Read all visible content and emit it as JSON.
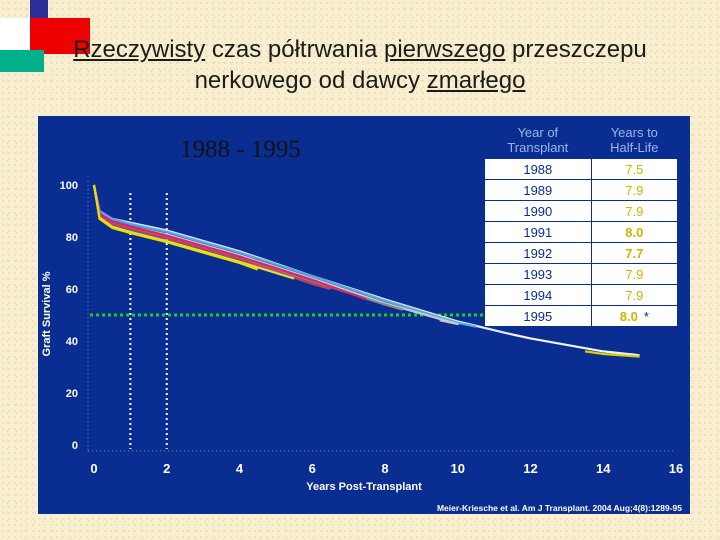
{
  "slide": {
    "title_parts": [
      {
        "text": "Rzeczywisty",
        "underline": true
      },
      {
        "text": " czas półtrwania ",
        "underline": false
      },
      {
        "text": "pierwszego",
        "underline": true
      },
      {
        "text": " przeszczepu nerkowego od dawcy ",
        "underline": false
      },
      {
        "text": "zmarłego",
        "underline": true
      }
    ]
  },
  "chart_data": {
    "type": "line",
    "year_range_label": "1988 - 1995",
    "xlabel": "Years Post-Transplant",
    "ylabel": "Graft Survival %",
    "xlim": [
      0,
      16
    ],
    "ylim": [
      0,
      100
    ],
    "x_ticks": [
      "0",
      "2",
      "4",
      "6",
      "8",
      "10",
      "12",
      "14",
      "16"
    ],
    "y_ticks": [
      "0",
      "20",
      "40",
      "60",
      "80",
      "100"
    ],
    "reference_line": {
      "y": 50,
      "color": "#22cc22"
    },
    "vertical_markers": [
      {
        "x": 1
      },
      {
        "x": 2
      }
    ],
    "citation": "Meier-Kriesche et al. Am J Transplant. 2004 Aug;4(8):1289-95",
    "series": [
      {
        "color": "#e8e8ff",
        "values": [
          [
            0,
            100
          ],
          [
            0.15,
            90
          ],
          [
            0.5,
            87
          ],
          [
            1,
            85.5
          ],
          [
            2,
            82.5
          ],
          [
            4,
            74.5
          ],
          [
            6,
            65
          ],
          [
            8,
            56
          ],
          [
            10,
            47.5
          ],
          [
            11.5,
            42.5
          ]
        ]
      },
      {
        "color": "#4fa8e8",
        "values": [
          [
            0,
            100
          ],
          [
            0.15,
            90
          ],
          [
            0.5,
            87
          ],
          [
            1,
            85
          ],
          [
            2,
            82
          ],
          [
            4,
            74
          ],
          [
            6,
            65
          ],
          [
            8,
            55.5
          ],
          [
            10,
            47
          ],
          [
            10.5,
            45.5
          ]
        ]
      },
      {
        "color": "#c8c8c8",
        "values": [
          [
            0,
            100
          ],
          [
            0.15,
            89
          ],
          [
            0.5,
            86
          ],
          [
            1,
            84
          ],
          [
            2,
            81
          ],
          [
            4,
            73
          ],
          [
            6,
            64
          ],
          [
            8,
            54.5
          ],
          [
            10,
            46.5
          ],
          [
            9.5,
            48
          ]
        ]
      },
      {
        "color": "#8a8a8a",
        "values": [
          [
            0,
            100
          ],
          [
            0.15,
            88.5
          ],
          [
            0.5,
            85.5
          ],
          [
            1,
            83.5
          ],
          [
            2,
            80
          ],
          [
            4,
            72
          ],
          [
            6,
            63
          ],
          [
            8,
            54
          ],
          [
            8.5,
            52
          ]
        ]
      },
      {
        "color": "#e0206a",
        "values": [
          [
            0,
            100
          ],
          [
            0.15,
            89
          ],
          [
            0.5,
            86
          ],
          [
            1,
            84
          ],
          [
            2,
            80.5
          ],
          [
            4,
            72.5
          ],
          [
            6,
            63.5
          ],
          [
            7.5,
            56
          ]
        ]
      },
      {
        "color": "#c04060",
        "values": [
          [
            0,
            100
          ],
          [
            0.15,
            88
          ],
          [
            0.5,
            85
          ],
          [
            1,
            83
          ],
          [
            2,
            79.5
          ],
          [
            4,
            71.5
          ],
          [
            6,
            62
          ],
          [
            6.5,
            60
          ]
        ]
      },
      {
        "color": "#d8e040",
        "values": [
          [
            0,
            100
          ],
          [
            0.15,
            87.5
          ],
          [
            0.5,
            84
          ],
          [
            1,
            82
          ],
          [
            2,
            78.5
          ],
          [
            4,
            70.5
          ],
          [
            5.5,
            64
          ]
        ]
      },
      {
        "color": "#e8e000",
        "values": [
          [
            0,
            100
          ],
          [
            0.15,
            87
          ],
          [
            0.5,
            83.5
          ],
          [
            1,
            81.5
          ],
          [
            2,
            78
          ],
          [
            4,
            70
          ],
          [
            4.5,
            67.5
          ]
        ]
      },
      {
        "color": "#f2f2f2",
        "values": [
          [
            11.5,
            42.5
          ],
          [
            12,
            41
          ],
          [
            13,
            38.5
          ],
          [
            14,
            36
          ],
          [
            15,
            34.5
          ]
        ]
      },
      {
        "color": "#d8d000",
        "values": [
          [
            13.5,
            36
          ],
          [
            14,
            35
          ],
          [
            15,
            34
          ]
        ]
      }
    ],
    "table": {
      "headers": [
        "Year of\nTransplant",
        "Years to\nHalf-Life"
      ],
      "rows": [
        {
          "year": "1988",
          "half_life": "7.5",
          "bold": false,
          "note": ""
        },
        {
          "year": "1989",
          "half_life": "7.9",
          "bold": false,
          "note": ""
        },
        {
          "year": "1990",
          "half_life": "7.9",
          "bold": false,
          "note": ""
        },
        {
          "year": "1991",
          "half_life": "8.0",
          "bold": true,
          "note": ""
        },
        {
          "year": "1992",
          "half_life": "7.7",
          "bold": true,
          "note": ""
        },
        {
          "year": "1993",
          "half_life": "7.9",
          "bold": false,
          "note": ""
        },
        {
          "year": "1994",
          "half_life": "7.9",
          "bold": false,
          "note": ""
        },
        {
          "year": "1995",
          "half_life": "8.0",
          "bold": true,
          "note": "*"
        }
      ]
    }
  }
}
